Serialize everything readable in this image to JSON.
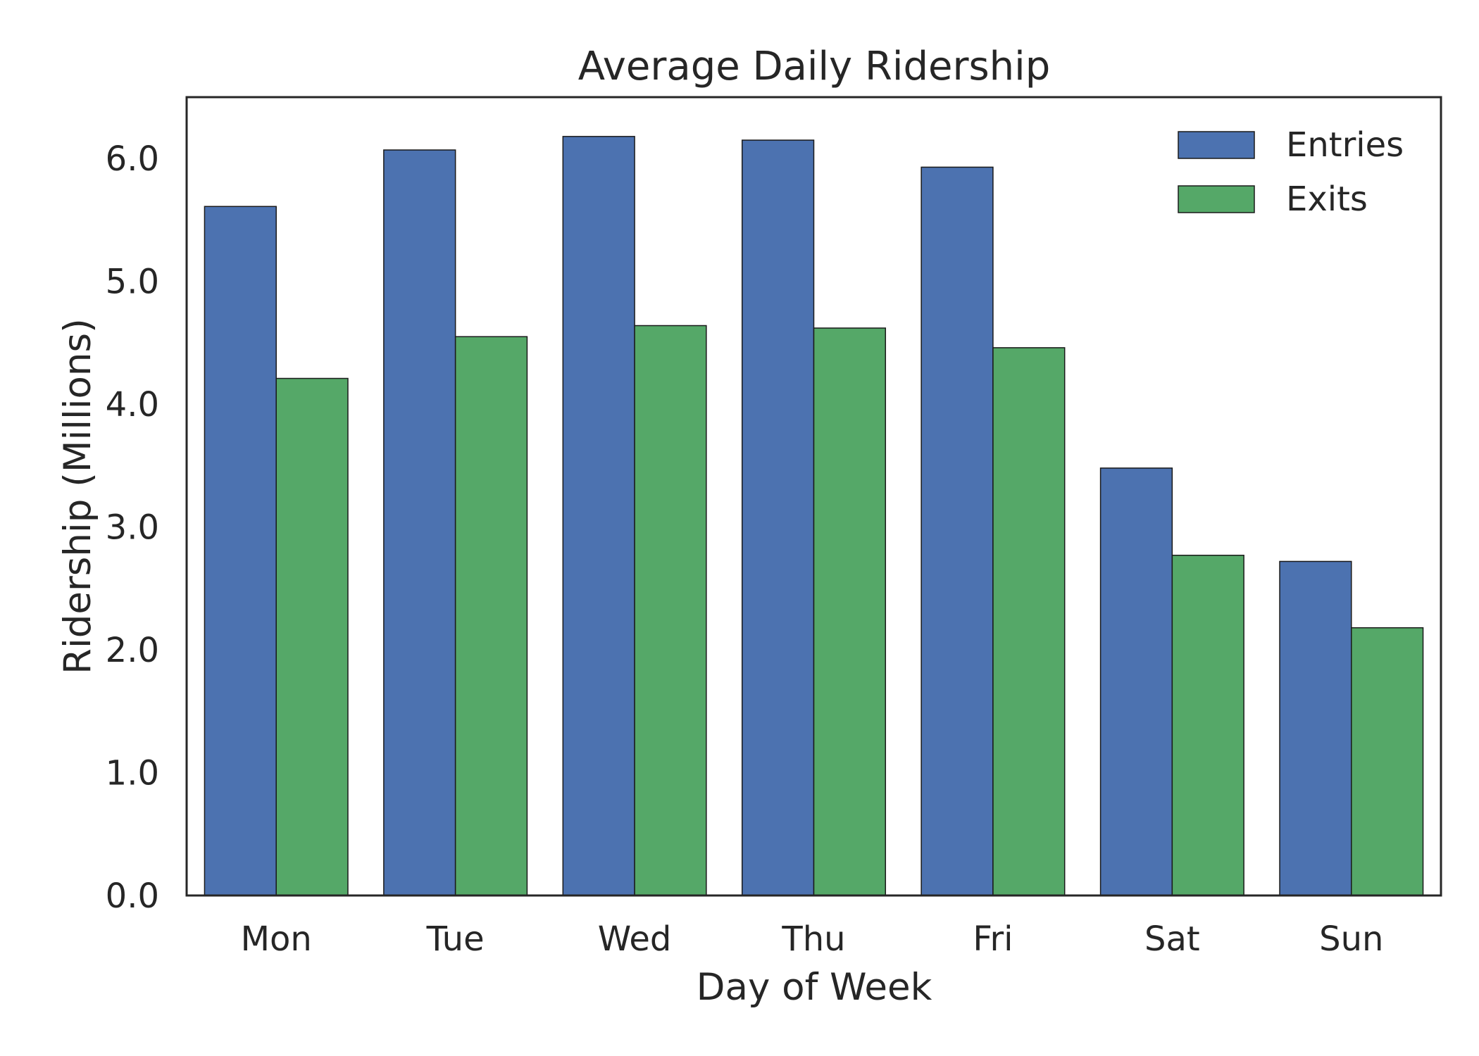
{
  "chart_data": {
    "type": "bar",
    "title": "Average Daily Ridership",
    "xlabel": "Day of Week",
    "ylabel": "Ridership (Millions)",
    "categories": [
      "Mon",
      "Tue",
      "Wed",
      "Thu",
      "Fri",
      "Sat",
      "Sun"
    ],
    "yticks": [
      "0.0",
      "1.0",
      "2.0",
      "3.0",
      "4.0",
      "5.0",
      "6.0"
    ],
    "ylim": [
      0,
      6.5
    ],
    "grid": false,
    "legend_position": "top-right",
    "series": [
      {
        "name": "Entries",
        "color": "#4c72b0",
        "values": [
          5.61,
          6.07,
          6.18,
          6.15,
          5.93,
          3.48,
          2.72
        ]
      },
      {
        "name": "Exits",
        "color": "#55a868",
        "values": [
          4.21,
          4.55,
          4.64,
          4.62,
          4.46,
          2.77,
          2.18
        ]
      }
    ]
  }
}
